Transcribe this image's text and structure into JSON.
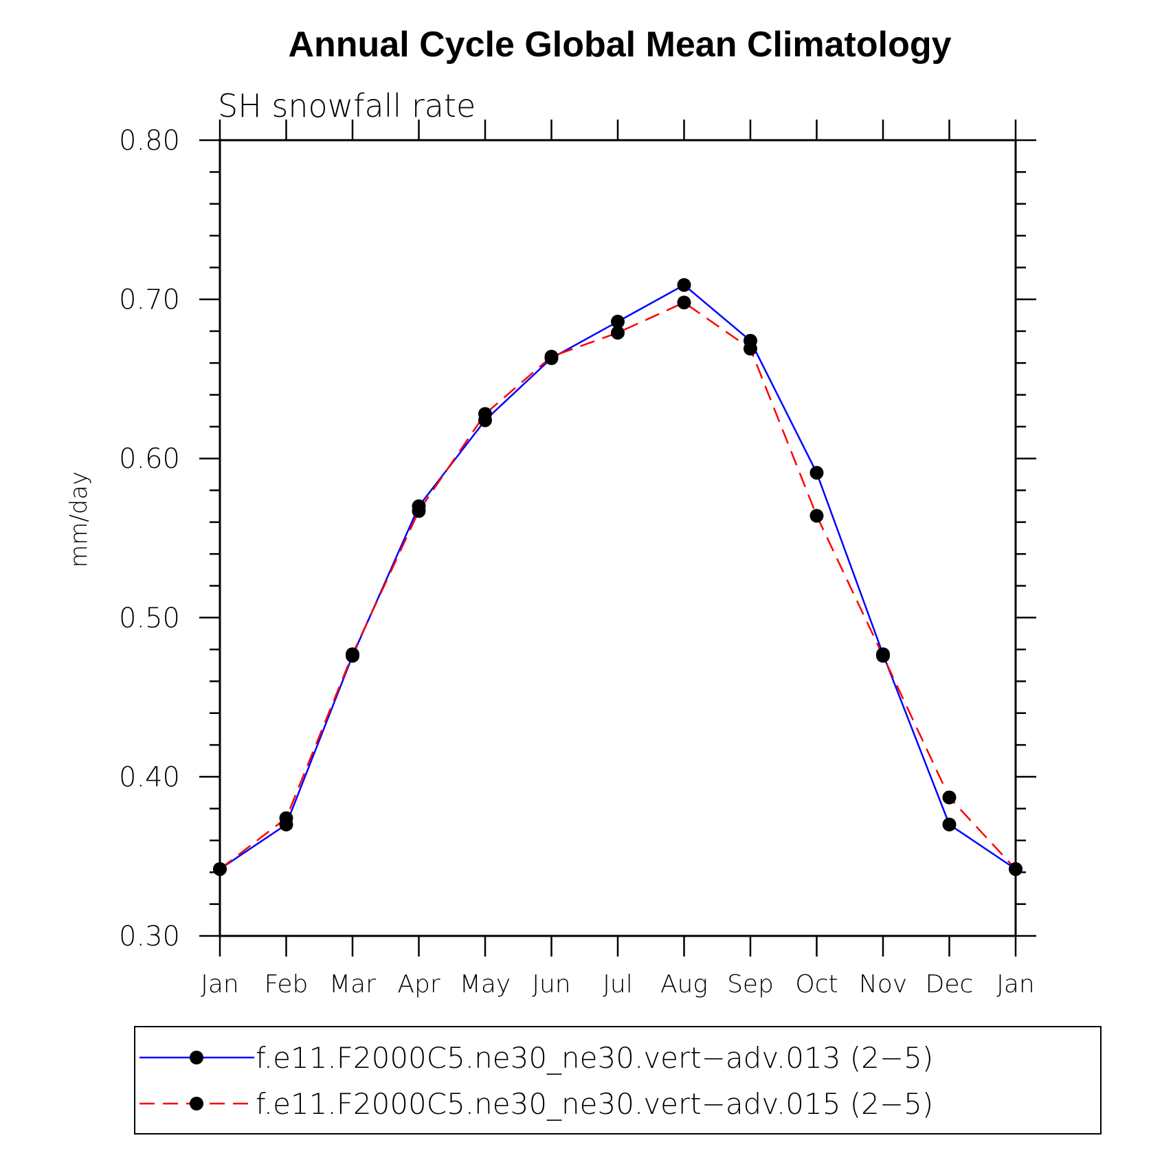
{
  "chart_data": {
    "type": "line",
    "title": "Annual Cycle Global Mean Climatology",
    "subtitle": "SH snowfall rate",
    "xlabel": "",
    "ylabel": "mm/day",
    "ylim": [
      0.3,
      0.8
    ],
    "y_ticks": [
      "0.30",
      "0.40",
      "0.50",
      "0.60",
      "0.70",
      "0.80"
    ],
    "categories": [
      "Jan",
      "Feb",
      "Mar",
      "Apr",
      "May",
      "Jun",
      "Jul",
      "Aug",
      "Sep",
      "Oct",
      "Nov",
      "Dec",
      "Jan"
    ],
    "legend_position": "bottom",
    "series": [
      {
        "name": "f.e11.F2000C5.ne30_ne30.vert−adv.013 (2−5)",
        "color": "#0000ff",
        "style": "solid",
        "marker": "circle",
        "values": [
          0.342,
          0.37,
          0.476,
          0.57,
          0.624,
          0.663,
          0.686,
          0.709,
          0.674,
          0.591,
          0.477,
          0.37,
          0.342
        ]
      },
      {
        "name": "f.e11.F2000C5.ne30_ne30.vert−adv.015 (2−5)",
        "color": "#ff0000",
        "style": "dashed",
        "marker": "circle",
        "values": [
          0.342,
          0.374,
          0.477,
          0.567,
          0.628,
          0.664,
          0.679,
          0.698,
          0.669,
          0.564,
          0.476,
          0.387,
          0.342
        ]
      }
    ]
  }
}
